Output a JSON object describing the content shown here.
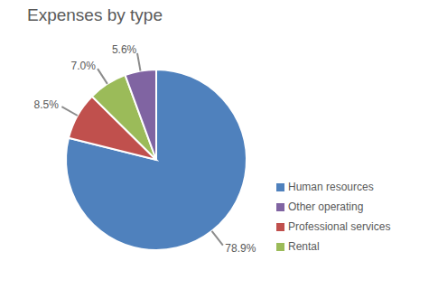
{
  "chart_data": {
    "type": "pie",
    "title": "Expenses by type",
    "categories": [
      "Human resources",
      "Professional services",
      "Rental",
      "Other operating"
    ],
    "values": [
      78.9,
      8.5,
      7.0,
      5.6
    ],
    "value_labels": [
      "78.9%",
      "8.5%",
      "7.0%",
      "5.6%"
    ],
    "colors": [
      "#4f81bd",
      "#c0504d",
      "#9bbb59",
      "#8064a2"
    ],
    "data_labels": true,
    "legend": "right"
  }
}
